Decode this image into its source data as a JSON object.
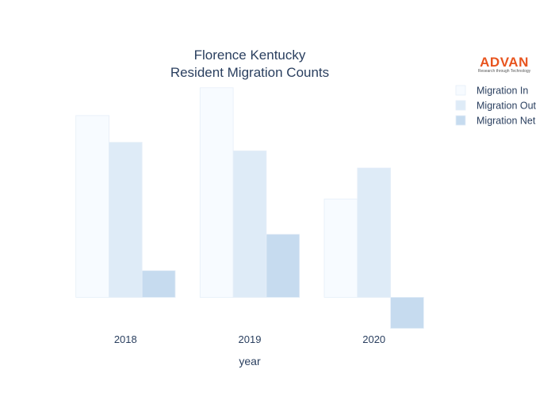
{
  "chart_data": {
    "type": "bar",
    "title": "Florence Kentucky",
    "subtitle": "Resident Migration Counts",
    "xlabel": "year",
    "ylabel": "",
    "categories": [
      "2018",
      "2019",
      "2020"
    ],
    "series": [
      {
        "name": "Migration In",
        "values": [
          8500,
          9800,
          4600
        ],
        "color": "#f7fbff"
      },
      {
        "name": "Migration Out",
        "values": [
          7250,
          6850,
          6050
        ],
        "color": "#deebf7"
      },
      {
        "name": "Migration Net",
        "values": [
          1250,
          2950,
          -1450
        ],
        "color": "#c6dbef"
      }
    ],
    "ylim": [
      -1650,
      10200
    ],
    "legend_position": "top-right",
    "grid": false
  },
  "brand": {
    "name": "ADVAN",
    "tagline": "Research through Technology",
    "color": "#e8541e"
  }
}
